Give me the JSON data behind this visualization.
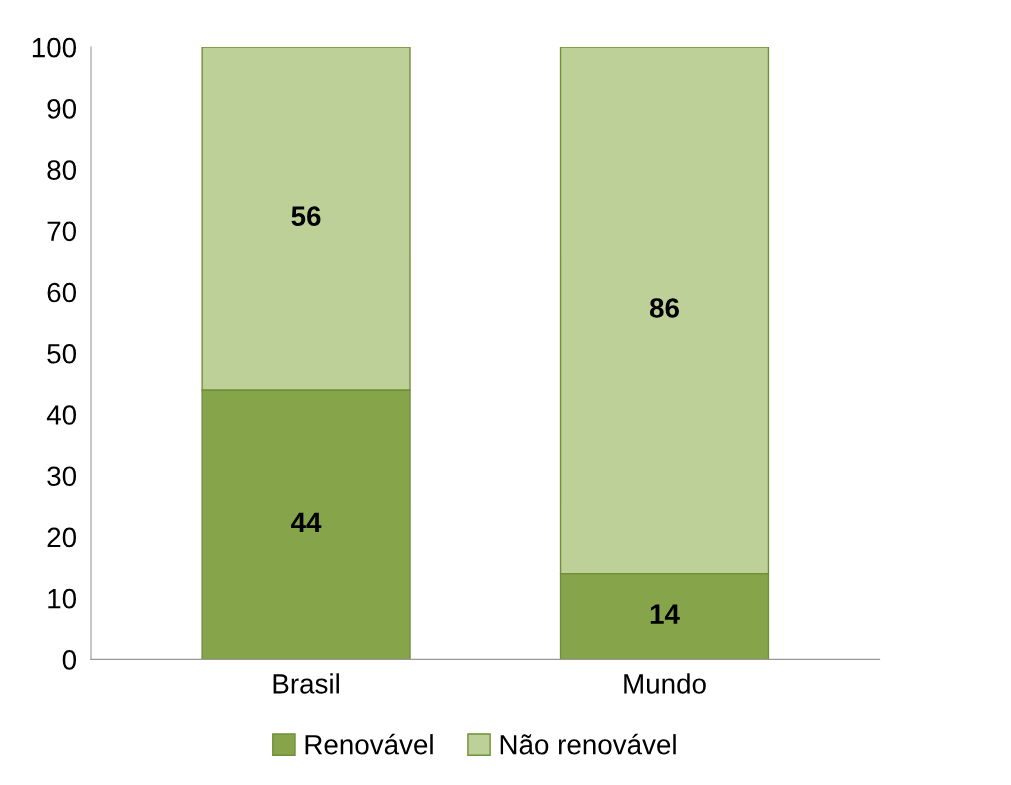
{
  "chart_data": {
    "type": "bar",
    "stacked": true,
    "categories": [
      "Brasil",
      "Mundo"
    ],
    "series": [
      {
        "name": "Renovável",
        "color": "#86a44a",
        "values": [
          44,
          14
        ]
      },
      {
        "name": "Não renovável",
        "color": "#bdd097",
        "values": [
          56,
          86
        ]
      }
    ],
    "ylim": [
      0,
      100
    ],
    "yticks": [
      0,
      10,
      20,
      30,
      40,
      50,
      60,
      70,
      80,
      90,
      100
    ],
    "data_labels": true,
    "legend": "bottom",
    "grid": false
  }
}
